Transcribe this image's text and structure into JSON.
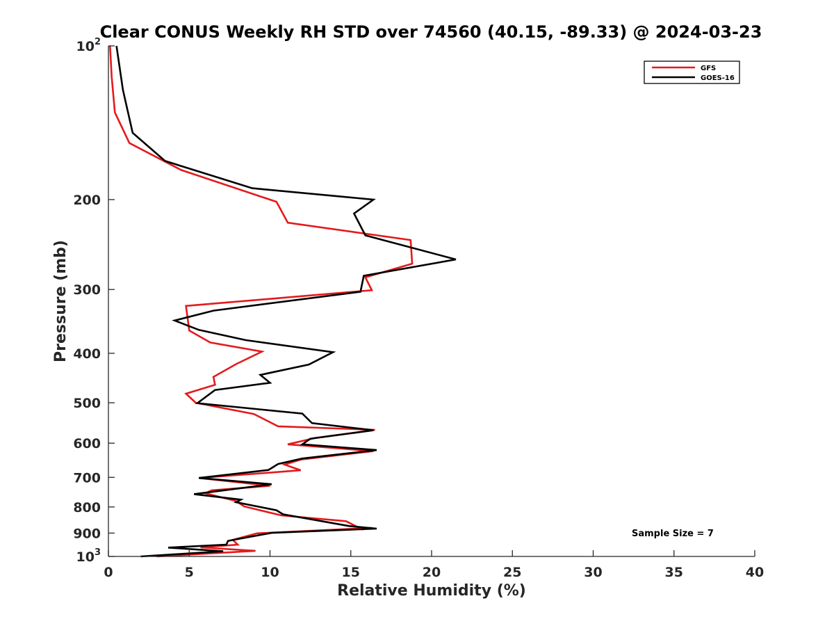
{
  "chart_data": {
    "type": "line",
    "title": "Clear CONUS Weekly RH STD over 74560 (40.15, -89.33) @ 2024-03-23",
    "xlabel": "Relative Humidity (%)",
    "ylabel": "Pressure (mb)",
    "xlim": [
      0,
      40
    ],
    "ylim": [
      100,
      1000
    ],
    "y_scale": "log",
    "y_reversed": true,
    "xticks": [
      0,
      5,
      10,
      15,
      20,
      25,
      30,
      35,
      40
    ],
    "xtick_labels": [
      "0",
      "5",
      "10",
      "15",
      "20",
      "25",
      "30",
      "35",
      "40"
    ],
    "yticks": [
      100,
      200,
      300,
      400,
      500,
      600,
      700,
      800,
      900,
      1000
    ],
    "ytick_labels": [
      {
        "base": "10",
        "exp": "2"
      },
      {
        "base": "200",
        "exp": ""
      },
      {
        "base": "300",
        "exp": ""
      },
      {
        "base": "400",
        "exp": ""
      },
      {
        "base": "500",
        "exp": ""
      },
      {
        "base": "600",
        "exp": ""
      },
      {
        "base": "700",
        "exp": ""
      },
      {
        "base": "800",
        "exp": ""
      },
      {
        "base": "900",
        "exp": ""
      },
      {
        "base": "10",
        "exp": "3"
      }
    ],
    "grid": false,
    "legend": {
      "position": "top-right"
    },
    "annotation": "Sample Size = 7",
    "series": [
      {
        "name": "GFS",
        "color": "#e41a1c",
        "points": [
          [
            0.1,
            100
          ],
          [
            0.2,
            115
          ],
          [
            0.4,
            135
          ],
          [
            1.3,
            155
          ],
          [
            4.5,
            175
          ],
          [
            10.4,
            202
          ],
          [
            11.1,
            222
          ],
          [
            18.7,
            240
          ],
          [
            18.8,
            267
          ],
          [
            15.9,
            284
          ],
          [
            16.3,
            301
          ],
          [
            4.8,
            323
          ],
          [
            5.0,
            361
          ],
          [
            6.3,
            381
          ],
          [
            9.5,
            397
          ],
          [
            7.9,
            420
          ],
          [
            6.5,
            445
          ],
          [
            6.6,
            461
          ],
          [
            4.8,
            480
          ],
          [
            5.4,
            500
          ],
          [
            9.0,
            526
          ],
          [
            10.5,
            556
          ],
          [
            16.5,
            565
          ],
          [
            12.8,
            586
          ],
          [
            11.1,
            603
          ],
          [
            16.4,
            622
          ],
          [
            11.9,
            646
          ],
          [
            10.9,
            661
          ],
          [
            11.9,
            678
          ],
          [
            5.6,
            702
          ],
          [
            10.0,
            727
          ],
          [
            6.4,
            742
          ],
          [
            6.0,
            752
          ],
          [
            7.9,
            779
          ],
          [
            8.4,
            798
          ],
          [
            10.7,
            831
          ],
          [
            14.7,
            853
          ],
          [
            15.7,
            885
          ],
          [
            16.3,
            879
          ],
          [
            9.2,
            901
          ],
          [
            7.7,
            928
          ],
          [
            8.0,
            948
          ],
          [
            5.7,
            960
          ],
          [
            9.1,
            975
          ],
          [
            3.0,
            1000
          ]
        ]
      },
      {
        "name": "GOES-16",
        "color": "#000000",
        "points": [
          [
            0.5,
            100
          ],
          [
            0.9,
            122
          ],
          [
            1.5,
            148
          ],
          [
            3.5,
            168
          ],
          [
            8.9,
            190
          ],
          [
            16.4,
            200
          ],
          [
            15.2,
            213
          ],
          [
            15.9,
            235
          ],
          [
            21.5,
            262
          ],
          [
            15.8,
            282
          ],
          [
            15.6,
            303
          ],
          [
            6.5,
            330
          ],
          [
            4.1,
            345
          ],
          [
            5.6,
            360
          ],
          [
            8.5,
            377
          ],
          [
            13.9,
            398
          ],
          [
            12.4,
            421
          ],
          [
            9.4,
            441
          ],
          [
            10.0,
            457
          ],
          [
            6.6,
            472
          ],
          [
            5.5,
            501
          ],
          [
            12.0,
            525
          ],
          [
            12.6,
            548
          ],
          [
            16.4,
            566
          ],
          [
            12.5,
            588
          ],
          [
            12.0,
            603
          ],
          [
            16.6,
            619
          ],
          [
            12.0,
            643
          ],
          [
            10.5,
            659
          ],
          [
            9.9,
            677
          ],
          [
            5.6,
            702
          ],
          [
            10.1,
            722
          ],
          [
            5.3,
            755
          ],
          [
            8.2,
            774
          ],
          [
            7.9,
            783
          ],
          [
            10.4,
            812
          ],
          [
            10.8,
            827
          ],
          [
            14.9,
            872
          ],
          [
            16.6,
            882
          ],
          [
            10.1,
            899
          ],
          [
            7.4,
            932
          ],
          [
            7.3,
            948
          ],
          [
            3.7,
            961
          ],
          [
            7.1,
            977
          ],
          [
            2.0,
            1000
          ]
        ]
      }
    ]
  }
}
